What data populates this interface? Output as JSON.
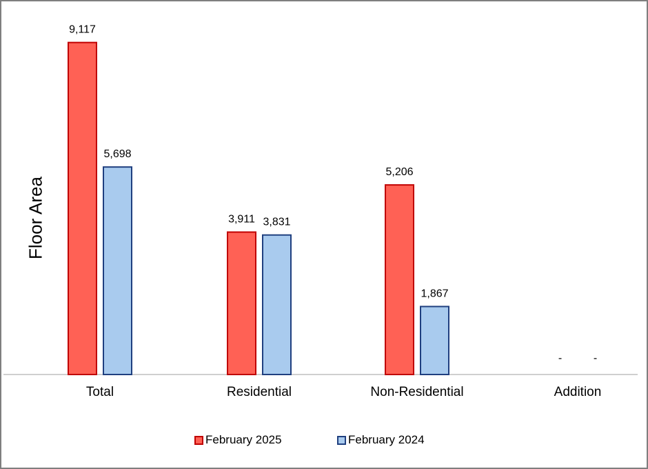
{
  "chart_data": {
    "type": "bar",
    "ylabel": "Floor Area",
    "xlabel": "",
    "categories": [
      "Total",
      "Residential",
      "Non-Residential",
      "Addition"
    ],
    "series": [
      {
        "name": "February 2025",
        "values": [
          9117,
          3911,
          5206,
          null
        ],
        "labels": [
          "9,117",
          "3,911",
          "5,206",
          "-"
        ],
        "fill": "#ff6155",
        "stroke": "#c00000"
      },
      {
        "name": "February 2024",
        "values": [
          5698,
          3831,
          1867,
          null
        ],
        "labels": [
          "5,698",
          "3,831",
          "1,867",
          "-"
        ],
        "fill": "#a9cbee",
        "stroke": "#1f3f7f"
      }
    ],
    "ylim": [
      0,
      10000
    ],
    "grid": false,
    "legend": "bottom"
  }
}
